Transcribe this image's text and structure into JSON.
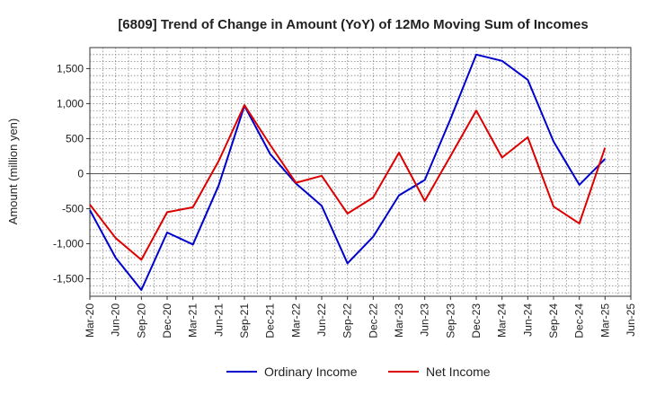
{
  "chart_data": {
    "type": "line",
    "title": "[6809]  Trend of Change in Amount (YoY) of 12Mo Moving Sum of Incomes",
    "ylabel": "Amount (million yen)",
    "xlabel": "",
    "ylim": [
      -1750,
      1800
    ],
    "yticks": [
      -1500,
      -1000,
      -500,
      0,
      500,
      1000,
      1500
    ],
    "ytick_labels": [
      "-1,500",
      "-1,000",
      "-500",
      "0",
      "500",
      "1,000",
      "1,500"
    ],
    "categories": [
      "Mar-20",
      "Jun-20",
      "Sep-20",
      "Dec-20",
      "Mar-21",
      "Jun-21",
      "Sep-21",
      "Dec-21",
      "Mar-22",
      "Jun-22",
      "Sep-22",
      "Dec-22",
      "Mar-23",
      "Jun-23",
      "Sep-23",
      "Dec-23",
      "Mar-24",
      "Jun-24",
      "Sep-24",
      "Dec-24",
      "Mar-25",
      "Jun-25"
    ],
    "grid": true,
    "legend_position": "bottom-center",
    "series": [
      {
        "name": "Ordinary Income",
        "color": "#0000cc",
        "values": [
          -520,
          -1200,
          -1660,
          -840,
          -1010,
          -170,
          970,
          280,
          -140,
          -460,
          -1280,
          -900,
          -310,
          -90,
          780,
          1700,
          1610,
          1340,
          460,
          -160,
          210,
          null
        ]
      },
      {
        "name": "Net Income",
        "color": "#dd0000",
        "values": [
          -440,
          -920,
          -1230,
          -550,
          -480,
          180,
          980,
          410,
          -130,
          -30,
          -570,
          -340,
          300,
          -390,
          250,
          900,
          230,
          520,
          -470,
          -710,
          370,
          null
        ]
      }
    ]
  }
}
